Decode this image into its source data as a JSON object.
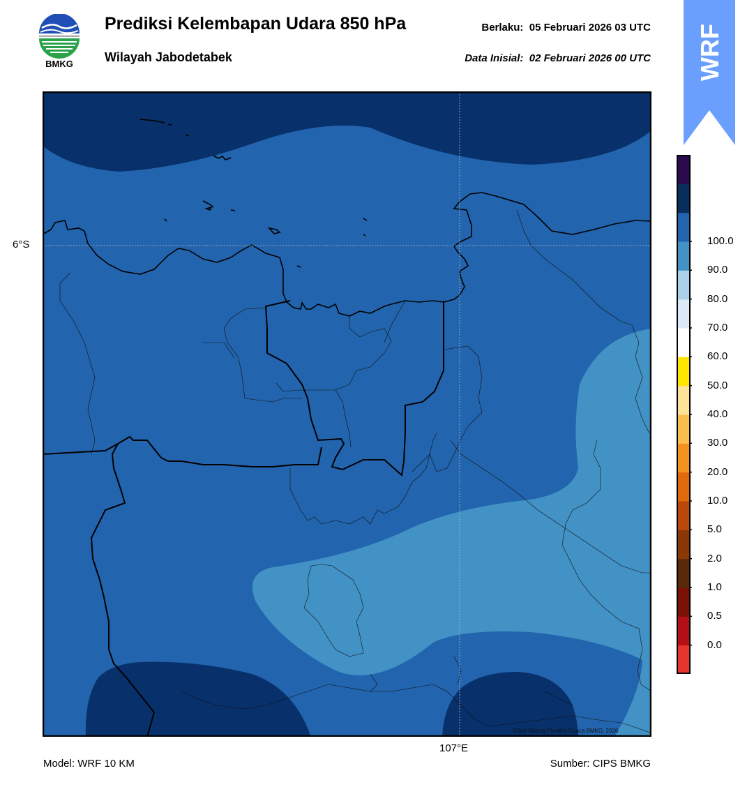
{
  "header": {
    "title": "Prediksi Kelembapan Udara 850 hPa",
    "subtitle": "Wilayah Jabodetabek",
    "valid_label": "Berlaku:",
    "valid_time": "05 Februari 2026 03 UTC",
    "init_label": "Data Inisial:",
    "init_time": "02 Februari 2026 00 UTC"
  },
  "logo": {
    "name": "BMKG"
  },
  "badge": {
    "text": "WRF",
    "color": "#6a9ffd"
  },
  "map": {
    "lat_tick": "6°S",
    "lon_tick": "107°E",
    "credit": "©Sub Bidang Prediksi Cuaca BMKG, 2026"
  },
  "footer": {
    "model": "Model: WRF 10 KM",
    "source": "Sumber: CIPS BMKG"
  },
  "colorbar": {
    "ticks": [
      "0.0",
      "0.5",
      "1.0",
      "2.0",
      "5.0",
      "10.0",
      "20.0",
      "30.0",
      "40.0",
      "50.0",
      "60.0",
      "70.0",
      "80.0",
      "90.0",
      "100.0"
    ],
    "colors": [
      "#e8342e",
      "#b30f15",
      "#7a1208",
      "#5a2a0c",
      "#8a3806",
      "#b9480a",
      "#e06a0c",
      "#f4921f",
      "#fbbf4e",
      "#fde29a",
      "#ffe600",
      "#ffffff",
      "#dce9f6",
      "#a9d0e6",
      "#4292c6",
      "#2264ad",
      "#082e5e",
      "#2b0a4d"
    ],
    "fill_colors": {
      "dark": "#08306b",
      "mid": "#2264ad",
      "light": "#4292c6"
    }
  }
}
